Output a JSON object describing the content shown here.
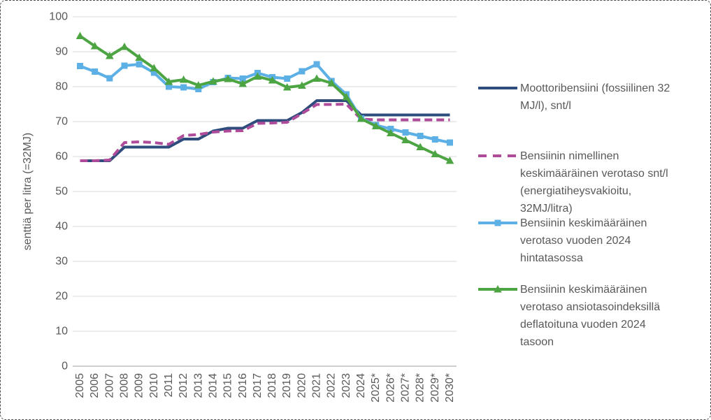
{
  "frame": {
    "background": "#FFFFFF",
    "border_color": "#4d4d4d"
  },
  "chart_data": {
    "type": "line",
    "title": "",
    "xlabel": "",
    "ylabel": "senttiä per litra (=32MJ)",
    "ylim": [
      0,
      100
    ],
    "yticks": [
      0,
      10,
      20,
      30,
      40,
      50,
      60,
      70,
      80,
      90,
      100
    ],
    "grid": "horizontal",
    "legend_position": "right",
    "colors": {
      "gridline": "#D9D9D9",
      "axis_line": "#BFBFBF",
      "text": "#595959"
    },
    "categories": [
      "2005",
      "2006",
      "2007",
      "2008",
      "2009",
      "2010",
      "2011",
      "2012",
      "2013",
      "2014",
      "2015",
      "2016",
      "2017",
      "2018",
      "2019",
      "2020",
      "2021",
      "2022",
      "2023",
      "2024",
      "2025*",
      "2026*",
      "2027*",
      "2028*",
      "2029*",
      "2030*"
    ],
    "series": [
      {
        "name": "Moottoribensiini (fossiilinen 32 MJ/l), snt/l",
        "label_wrapped": "Moottoribensiini (fossiilinen 32\nMJ/l), snt/l",
        "color": "#2E4D7C",
        "line_style": "solid",
        "marker": "none",
        "values": [
          58.8,
          58.8,
          58.8,
          62.7,
          62.7,
          62.7,
          62.7,
          65.0,
          65.0,
          67.3,
          68.1,
          68.1,
          70.3,
          70.3,
          70.3,
          72.6,
          76.0,
          76.0,
          76.0,
          71.9,
          71.9,
          71.9,
          71.9,
          71.9,
          71.9,
          71.9
        ]
      },
      {
        "name": "Bensiinin nimellinen keskimääräinen verotaso snt/l (energiatiheysvakioitu, 32MJ/litra)",
        "label_wrapped": "Bensiinin nimellinen\nkeskimääräinen verotaso snt/l\n(energiatiheysvakioitu,\n32MJ/litra)",
        "color": "#AF4B9B",
        "line_style": "dashed",
        "marker": "none",
        "values": [
          58.8,
          58.8,
          59.0,
          64.0,
          64.2,
          64.0,
          63.5,
          66.0,
          66.3,
          67.0,
          67.3,
          67.4,
          69.5,
          69.6,
          69.8,
          72.3,
          74.9,
          74.9,
          75.0,
          70.7,
          70.5,
          70.5,
          70.5,
          70.5,
          70.5,
          70.5
        ]
      },
      {
        "name": "Bensiinin keskimääräinen verotaso vuoden 2024 hintatasossa",
        "label_wrapped": "Bensiinin keskimääräinen\nverotaso vuoden 2024\nhintatasossa",
        "color": "#5CB0E5",
        "line_style": "solid",
        "marker": "square",
        "values": [
          85.9,
          84.3,
          82.4,
          86.0,
          86.4,
          84.0,
          80.0,
          79.8,
          79.3,
          81.3,
          82.5,
          82.3,
          83.9,
          82.7,
          82.3,
          84.4,
          86.4,
          81.6,
          77.8,
          70.9,
          69.0,
          67.9,
          66.9,
          65.9,
          64.9,
          64.0
        ]
      },
      {
        "name": "Bensiinin keskimääräinen verotaso ansiotasoindeksillä deflatoituna vuoden 2024 tasoon",
        "label_wrapped": "Bensiinin keskimääräinen\nverotaso ansiotasoindeksillä\ndeflatoituna vuoden 2024\ntasoon",
        "color": "#4CA442",
        "line_style": "solid",
        "marker": "triangle",
        "values": [
          94.5,
          91.6,
          88.8,
          91.4,
          88.3,
          85.3,
          81.4,
          82.0,
          80.4,
          81.5,
          82.2,
          80.8,
          82.9,
          81.8,
          79.8,
          80.3,
          82.3,
          81.0,
          77.0,
          70.8,
          68.7,
          66.7,
          64.7,
          62.7,
          60.7,
          58.8
        ]
      }
    ]
  }
}
